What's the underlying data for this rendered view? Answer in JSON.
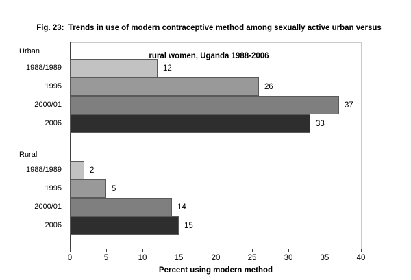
{
  "title": {
    "line1": "Fig. 23:  Trends in use of modern contraceptive method among sexually active urban versus",
    "line2": "rural women, Uganda 1988-2006"
  },
  "chart_data": {
    "type": "bar",
    "orientation": "horizontal",
    "title": "Fig. 23: Trends in use of modern contraceptive method among sexually active urban versus rural women, Uganda 1988-2006",
    "xlabel": "Percent using modern method",
    "ylabel": "",
    "xlim": [
      0,
      40
    ],
    "xticks": [
      0,
      5,
      10,
      15,
      20,
      25,
      30,
      35,
      40
    ],
    "grid": false,
    "legend": false,
    "value_labels": true,
    "groups": [
      {
        "label": "Urban",
        "categories": [
          "1988/1989",
          "1995",
          "2000/01",
          "2006"
        ],
        "values": [
          12,
          26,
          37,
          33
        ]
      },
      {
        "label": "Rural",
        "categories": [
          "1988/1989",
          "1995",
          "2000/01",
          "2006"
        ],
        "values": [
          2,
          5,
          14,
          15
        ]
      }
    ],
    "bar_colors": [
      "#c2c2c2",
      "#999999",
      "#7f7f7f",
      "#2e2e2e"
    ],
    "bar_border_color": "#5a5a5a",
    "axis_color": "#3f3f3f",
    "frame_color": "#c9c9c9",
    "text_color": "#000000",
    "background_color": "#ffffff"
  }
}
